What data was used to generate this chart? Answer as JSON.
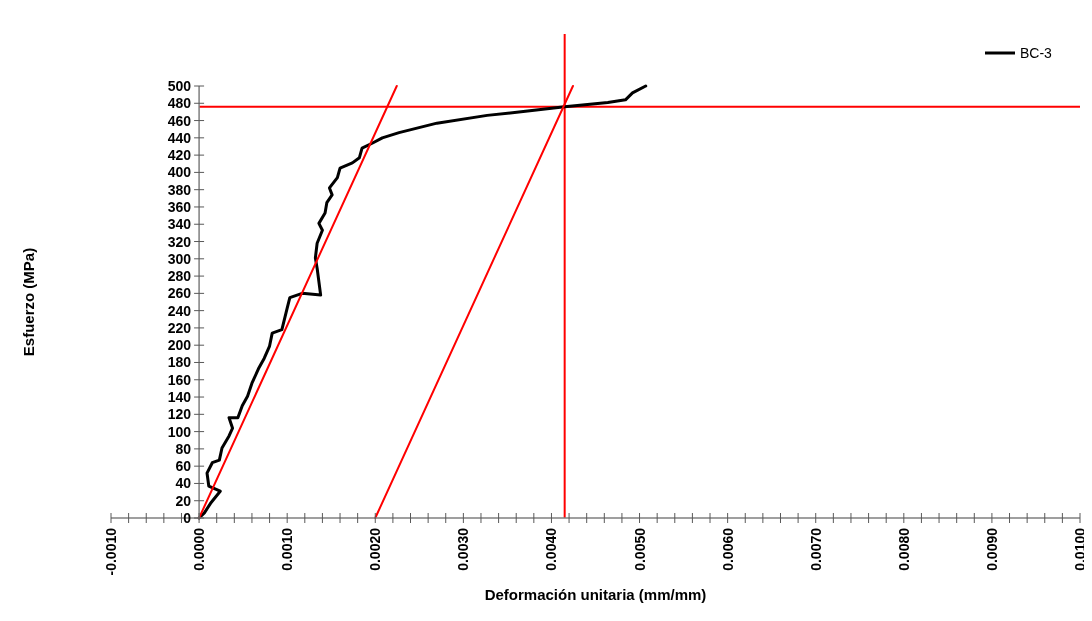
{
  "chart_data": {
    "type": "line",
    "xlabel": "Deformación unitaria (mm/mm)",
    "ylabel": "Esfuerzo (MPa)",
    "xlim": [
      -0.001,
      0.01
    ],
    "ylim": [
      0,
      500
    ],
    "xticks": [
      {
        "value": -0.001,
        "label": "-0.0010"
      },
      {
        "value": 0,
        "label": "0.0000"
      },
      {
        "value": 0.001,
        "label": "0.0010"
      },
      {
        "value": 0.002,
        "label": "0.0020"
      },
      {
        "value": 0.003,
        "label": "0.0030"
      },
      {
        "value": 0.004,
        "label": "0.0040"
      },
      {
        "value": 0.005,
        "label": "0.0050"
      },
      {
        "value": 0.006,
        "label": "0.0060"
      },
      {
        "value": 0.007,
        "label": "0.0070"
      },
      {
        "value": 0.008,
        "label": "0.0080"
      },
      {
        "value": 0.009,
        "label": "0.0090"
      },
      {
        "value": 0.01,
        "label": "0.0100"
      },
      {
        "value": -0.0008,
        "label": null
      },
      {
        "value": -0.0006,
        "label": null
      },
      {
        "value": -0.0004,
        "label": null
      },
      {
        "value": -0.0002,
        "label": null
      },
      {
        "value": 0.0002,
        "label": null
      },
      {
        "value": 0.0004,
        "label": null
      },
      {
        "value": 0.0006,
        "label": null
      },
      {
        "value": 0.0008,
        "label": null
      },
      {
        "value": 0.0012,
        "label": null
      },
      {
        "value": 0.0014,
        "label": null
      },
      {
        "value": 0.0016,
        "label": null
      },
      {
        "value": 0.0018,
        "label": null
      },
      {
        "value": 0.0022,
        "label": null
      },
      {
        "value": 0.0024,
        "label": null
      },
      {
        "value": 0.0026,
        "label": null
      },
      {
        "value": 0.0028,
        "label": null
      },
      {
        "value": 0.0032,
        "label": null
      },
      {
        "value": 0.0034,
        "label": null
      },
      {
        "value": 0.0036,
        "label": null
      },
      {
        "value": 0.0038,
        "label": null
      },
      {
        "value": 0.0042,
        "label": null
      },
      {
        "value": 0.0044,
        "label": null
      },
      {
        "value": 0.0046,
        "label": null
      },
      {
        "value": 0.0048,
        "label": null
      },
      {
        "value": 0.0052,
        "label": null
      },
      {
        "value": 0.0054,
        "label": null
      },
      {
        "value": 0.0056,
        "label": null
      },
      {
        "value": 0.0058,
        "label": null
      },
      {
        "value": 0.0062,
        "label": null
      },
      {
        "value": 0.0064,
        "label": null
      },
      {
        "value": 0.0066,
        "label": null
      },
      {
        "value": 0.0068,
        "label": null
      },
      {
        "value": 0.0072,
        "label": null
      },
      {
        "value": 0.0074,
        "label": null
      },
      {
        "value": 0.0076,
        "label": null
      },
      {
        "value": 0.0078,
        "label": null
      },
      {
        "value": 0.0082,
        "label": null
      },
      {
        "value": 0.0084,
        "label": null
      },
      {
        "value": 0.0086,
        "label": null
      },
      {
        "value": 0.0088,
        "label": null
      },
      {
        "value": 0.0092,
        "label": null
      },
      {
        "value": 0.0094,
        "label": null
      },
      {
        "value": 0.0096,
        "label": null
      },
      {
        "value": 0.0098,
        "label": null
      }
    ],
    "yticks": [
      0,
      20,
      40,
      60,
      80,
      100,
      120,
      140,
      160,
      180,
      200,
      220,
      240,
      260,
      280,
      300,
      320,
      340,
      360,
      380,
      400,
      420,
      440,
      460,
      480,
      500
    ],
    "legend": "top right",
    "grid": false,
    "marker": "none",
    "line_style": "solid",
    "series": [
      {
        "name": "BC-3",
        "color": "#000000",
        "x": [
          0,
          6e-05,
          0.00013,
          0.00024,
          0.00011,
          9e-05,
          0.00015,
          0.00023,
          0.00026,
          0.00034,
          0.00038,
          0.00034,
          0.00044,
          0.00049,
          0.00055,
          0.0006,
          0.00068,
          0.00074,
          0.0008,
          0.00083,
          0.00094,
          0.001,
          0.00103,
          0.00117,
          0.00138,
          0.00134,
          0.00132,
          0.00134,
          0.0014,
          0.00136,
          0.00143,
          0.00145,
          0.00151,
          0.00148,
          0.00157,
          0.0016,
          0.00174,
          0.00182,
          0.00185,
          0.00197,
          0.00208,
          0.00227,
          0.0027,
          0.00327,
          0.00373,
          0.00415,
          0.00464,
          0.00484,
          0.00492,
          0.00507
        ],
        "values": [
          0,
          6,
          17,
          31,
          37,
          52,
          64,
          67,
          81,
          95,
          104,
          116,
          116,
          130,
          141,
          156,
          174,
          185,
          199,
          214,
          218,
          243,
          255,
          260,
          258,
          289,
          301,
          318,
          333,
          341,
          353,
          365,
          374,
          382,
          394,
          405,
          411,
          417,
          428,
          434,
          440,
          446,
          457,
          466,
          471,
          476,
          481,
          484,
          492,
          500
        ]
      },
      {
        "color": "#ff0000",
        "x": [
          0,
          0.002244
        ],
        "values": [
          0,
          500
        ]
      },
      {
        "color": "#ff0000",
        "x": [
          0.002,
          0.004244
        ],
        "values": [
          0,
          500
        ]
      }
    ],
    "ref_lines": [
      {
        "axis": "x",
        "value": 0.00415,
        "color": "#ff0000"
      },
      {
        "axis": "y",
        "value": 476,
        "color": "#ff0000"
      }
    ]
  }
}
